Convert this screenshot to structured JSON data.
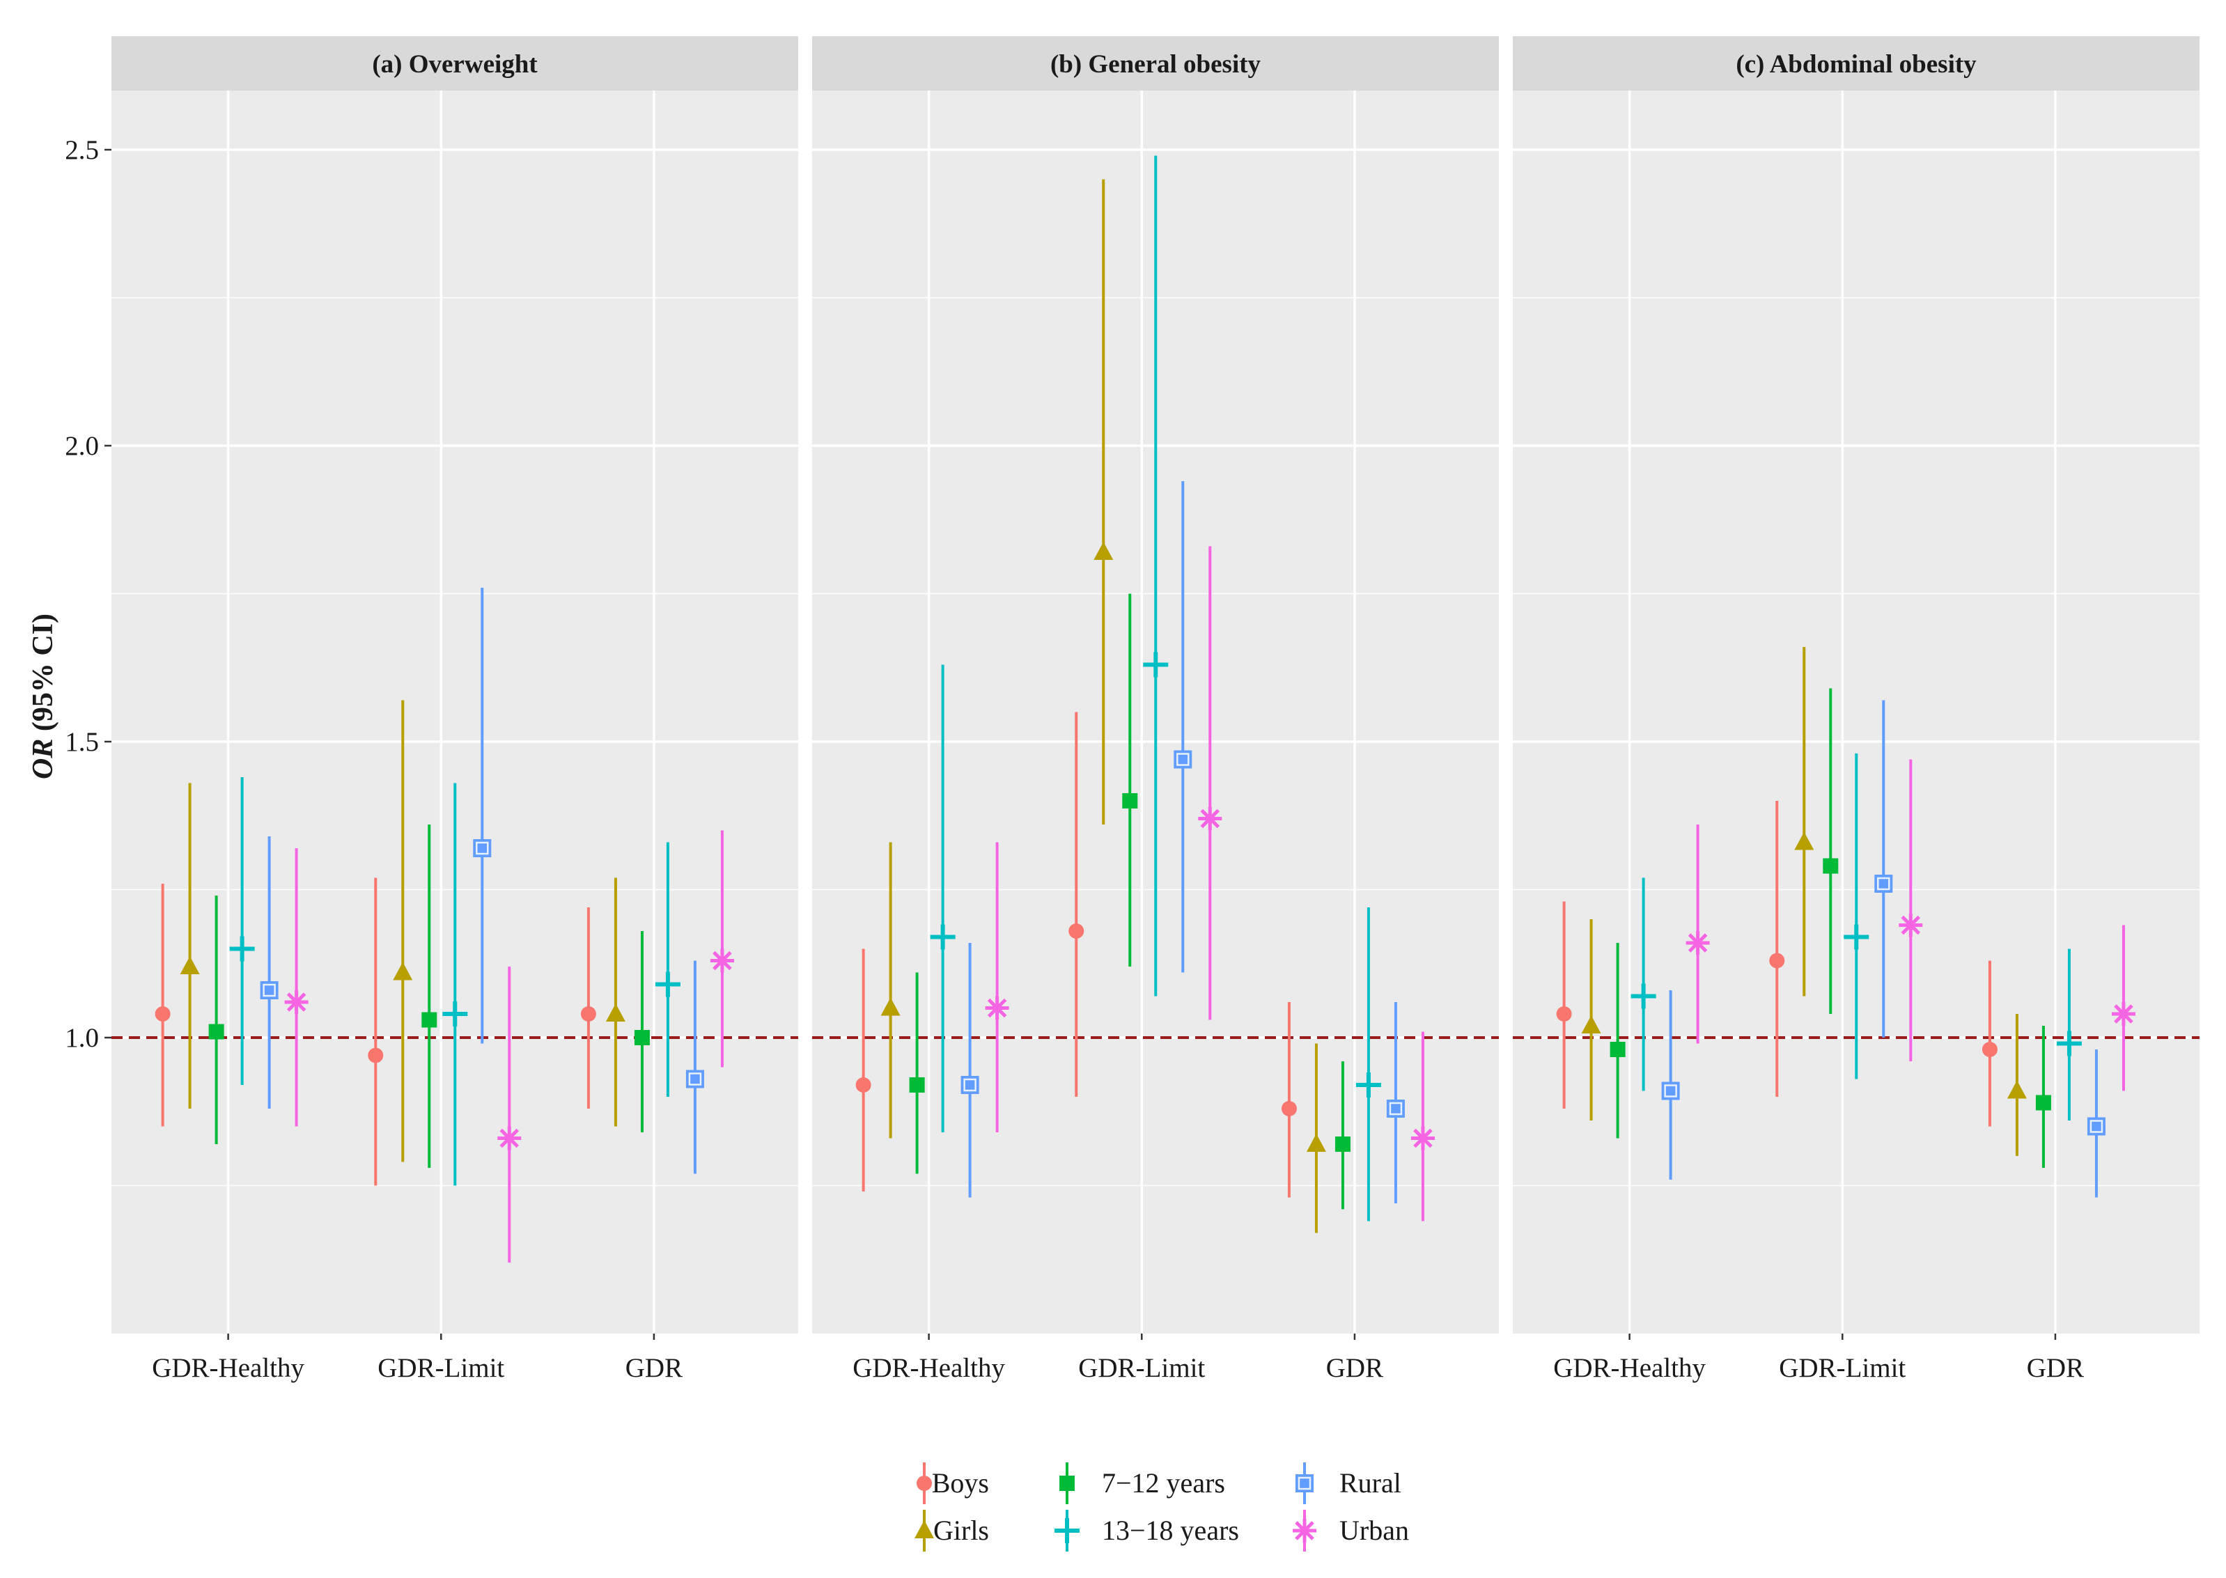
{
  "chart_data": {
    "type": "forest",
    "ylabel_italic": "OR",
    "ylabel_rest": " (95% CI)",
    "ylim": [
      0.5,
      2.6
    ],
    "yticks": [
      1.0,
      1.5,
      2.0,
      2.5
    ],
    "ytick_labels": [
      "1.0",
      "1.5",
      "2.0",
      "2.5"
    ],
    "reference_line": 1.0,
    "categories": [
      "GDR-Healthy",
      "GDR-Limit",
      "GDR"
    ],
    "series": [
      {
        "name": "Boys",
        "color": "#F8766D",
        "shape": "circle"
      },
      {
        "name": "Girls",
        "color": "#B79F00",
        "shape": "triangle"
      },
      {
        "name": "7−12 years",
        "color": "#00BA38",
        "shape": "square"
      },
      {
        "name": "13−18 years",
        "color": "#00BFC4",
        "shape": "plus"
      },
      {
        "name": "Rural",
        "color": "#619CFF",
        "shape": "boxsquare"
      },
      {
        "name": "Urban",
        "color": "#F564E3",
        "shape": "asterisk"
      }
    ],
    "panels": [
      {
        "title": "(a) Overweight",
        "data": [
          [
            [
              1.04,
              0.85,
              1.26
            ],
            [
              1.12,
              0.88,
              1.43
            ],
            [
              1.01,
              0.82,
              1.24
            ],
            [
              1.15,
              0.92,
              1.44
            ],
            [
              1.08,
              0.88,
              1.34
            ],
            [
              1.06,
              0.85,
              1.32
            ]
          ],
          [
            [
              0.97,
              0.75,
              1.27
            ],
            [
              1.11,
              0.79,
              1.57
            ],
            [
              1.03,
              0.78,
              1.36
            ],
            [
              1.04,
              0.75,
              1.43
            ],
            [
              1.32,
              0.99,
              1.76
            ],
            [
              0.83,
              0.62,
              1.12
            ]
          ],
          [
            [
              1.04,
              0.88,
              1.22
            ],
            [
              1.04,
              0.85,
              1.27
            ],
            [
              1.0,
              0.84,
              1.18
            ],
            [
              1.09,
              0.9,
              1.33
            ],
            [
              0.93,
              0.77,
              1.13
            ],
            [
              1.13,
              0.95,
              1.35
            ]
          ]
        ]
      },
      {
        "title": "(b) General obesity",
        "data": [
          [
            [
              0.92,
              0.74,
              1.15
            ],
            [
              1.05,
              0.83,
              1.33
            ],
            [
              0.92,
              0.77,
              1.11
            ],
            [
              1.17,
              0.84,
              1.63
            ],
            [
              0.92,
              0.73,
              1.16
            ],
            [
              1.05,
              0.84,
              1.33
            ]
          ],
          [
            [
              1.18,
              0.9,
              1.55
            ],
            [
              1.82,
              1.36,
              2.45
            ],
            [
              1.4,
              1.12,
              1.75
            ],
            [
              1.63,
              1.07,
              2.49
            ],
            [
              1.47,
              1.11,
              1.94
            ],
            [
              1.37,
              1.03,
              1.83
            ]
          ],
          [
            [
              0.88,
              0.73,
              1.06
            ],
            [
              0.82,
              0.67,
              0.99
            ],
            [
              0.82,
              0.71,
              0.96
            ],
            [
              0.92,
              0.69,
              1.22
            ],
            [
              0.88,
              0.72,
              1.06
            ],
            [
              0.83,
              0.69,
              1.01
            ]
          ]
        ]
      },
      {
        "title": "(c) Abdominal obesity",
        "data": [
          [
            [
              1.04,
              0.88,
              1.23
            ],
            [
              1.02,
              0.86,
              1.2
            ],
            [
              0.98,
              0.83,
              1.16
            ],
            [
              1.07,
              0.91,
              1.27
            ],
            [
              0.91,
              0.76,
              1.08
            ],
            [
              1.16,
              0.99,
              1.36
            ]
          ],
          [
            [
              1.13,
              0.9,
              1.4
            ],
            [
              1.33,
              1.07,
              1.66
            ],
            [
              1.29,
              1.04,
              1.59
            ],
            [
              1.17,
              0.93,
              1.48
            ],
            [
              1.26,
              1.0,
              1.57
            ],
            [
              1.19,
              0.96,
              1.47
            ]
          ],
          [
            [
              0.98,
              0.85,
              1.13
            ],
            [
              0.91,
              0.8,
              1.04
            ],
            [
              0.89,
              0.78,
              1.02
            ],
            [
              0.99,
              0.86,
              1.15
            ],
            [
              0.85,
              0.73,
              0.98
            ],
            [
              1.04,
              0.91,
              1.19
            ]
          ]
        ]
      }
    ]
  }
}
